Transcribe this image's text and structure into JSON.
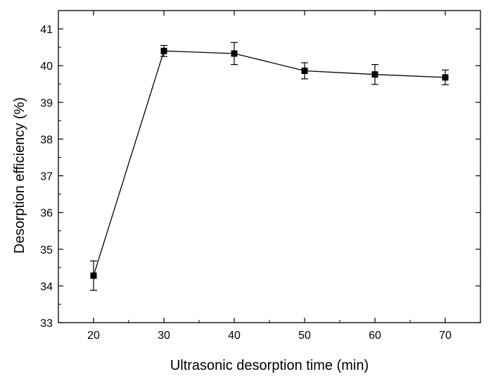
{
  "chart_data": {
    "type": "line",
    "xlabel": "Ultrasonic desorption time (min)",
    "ylabel": "Desorption efficiency (%)",
    "xlim": [
      15,
      75
    ],
    "ylim": [
      33,
      41.5
    ],
    "xticks": [
      20,
      30,
      40,
      50,
      60,
      70
    ],
    "yticks": [
      33,
      34,
      35,
      36,
      37,
      38,
      39,
      40,
      41
    ],
    "x_tick_labels": [
      "20",
      "30",
      "40",
      "50",
      "60",
      "70"
    ],
    "y_tick_labels": [
      "33",
      "34",
      "35",
      "36",
      "37",
      "38",
      "39",
      "40",
      "41"
    ],
    "grid": false,
    "marker": "square",
    "series": [
      {
        "x": [
          20,
          30,
          40,
          50,
          60,
          70
        ],
        "y": [
          34.28,
          40.4,
          40.33,
          39.86,
          39.76,
          39.68
        ],
        "error": [
          0.4,
          0.15,
          0.3,
          0.22,
          0.27,
          0.2
        ]
      }
    ],
    "colors": {
      "line": "#000000",
      "marker": "#000000"
    }
  }
}
